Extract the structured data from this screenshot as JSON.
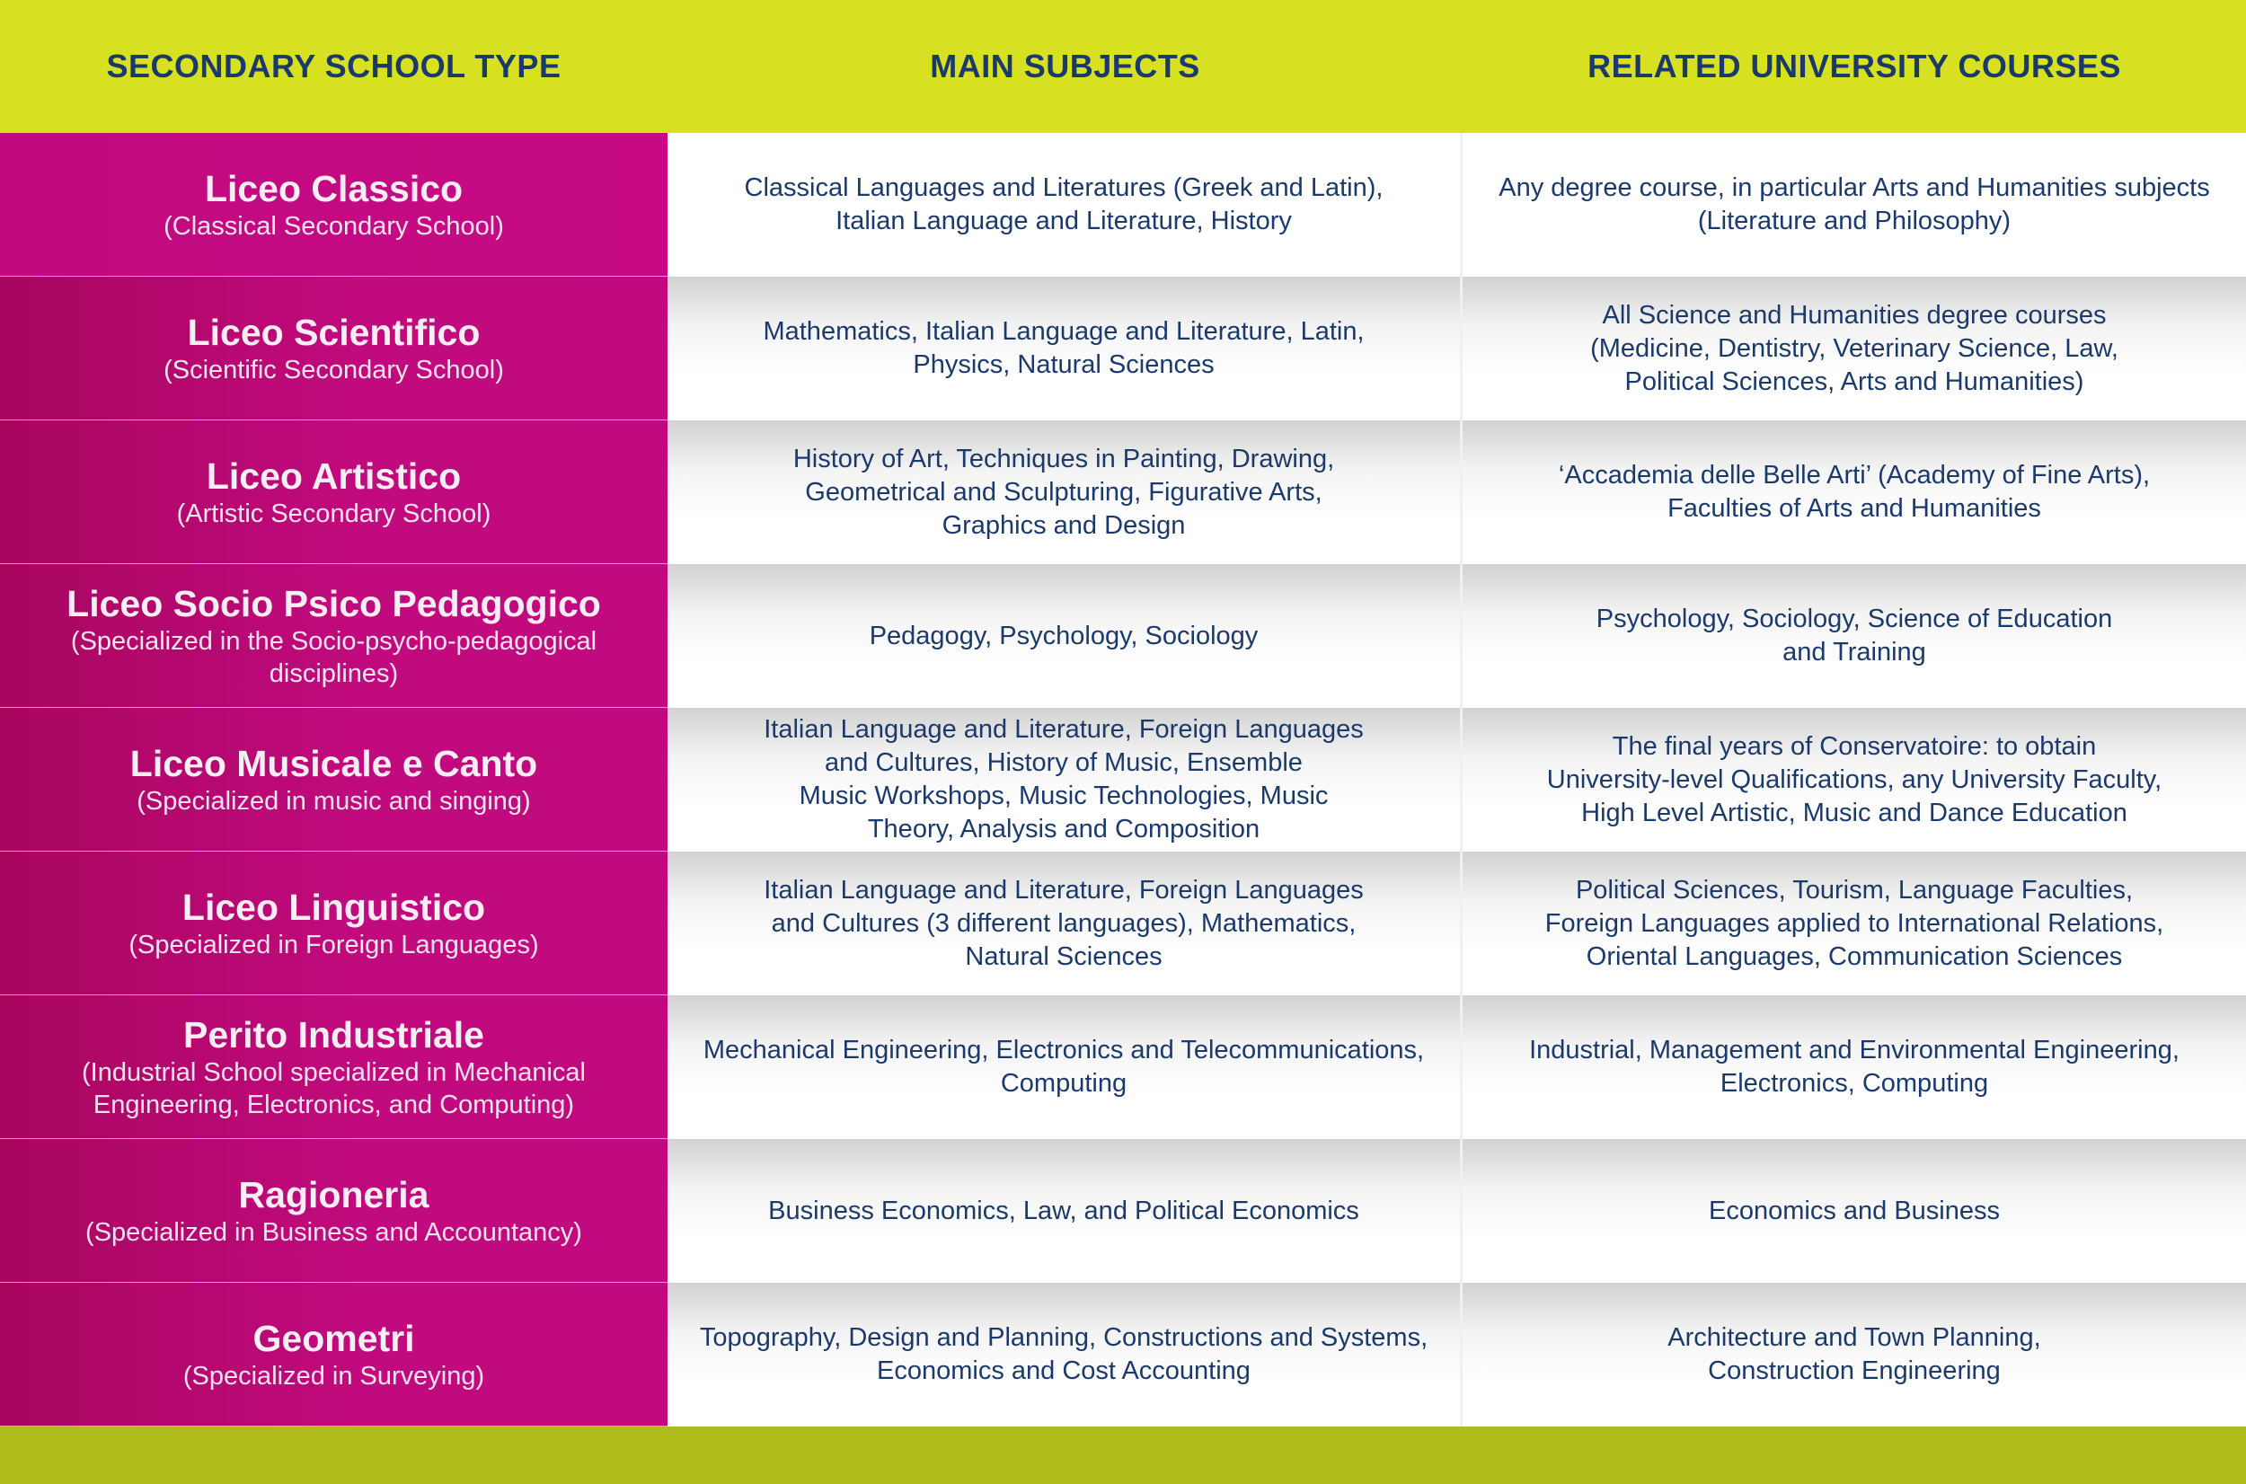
{
  "header": {
    "col1": "SECONDARY SCHOOL TYPE",
    "col2": "MAIN SUBJECTS",
    "col3": "RELATED UNIVERSITY COURSES"
  },
  "colors": {
    "header_bg": "#d7e021",
    "header_text": "#1b3a6b",
    "school_bg": "#c10a7e",
    "body_text": "#1b3a6b",
    "footer_bg": "#b0bb1c"
  },
  "rows": [
    {
      "name": "Liceo Classico",
      "sub": "(Classical Secondary School)",
      "subjects": "Classical Languages and Literatures (Greek and Latin),\nItalian Language and Literature, History",
      "courses": "Any degree course, in particular Arts and Humanities subjects\n(Literature and Philosophy)"
    },
    {
      "name": "Liceo Scientifico",
      "sub": "(Scientific Secondary School)",
      "subjects": "Mathematics, Italian Language and Literature, Latin,\nPhysics, Natural Sciences",
      "courses": "All Science and Humanities degree courses\n(Medicine, Dentistry, Veterinary Science, Law,\nPolitical Sciences, Arts and Humanities)"
    },
    {
      "name": "Liceo Artistico",
      "sub": "(Artistic Secondary School)",
      "subjects": "History of Art, Techniques in Painting, Drawing,\nGeometrical and Sculpturing, Figurative Arts,\nGraphics and Design",
      "courses": "‘Accademia delle Belle Arti’ (Academy of Fine Arts),\nFaculties of Arts and Humanities"
    },
    {
      "name": "Liceo Socio Psico Pedagogico",
      "sub": "(Specialized in the Socio-psycho-pedagogical disciplines)",
      "subjects": "Pedagogy, Psychology, Sociology",
      "courses": "Psychology, Sociology,  Science of Education\nand Training"
    },
    {
      "name": "Liceo Musicale e Canto",
      "sub": "(Specialized in music and singing)",
      "subjects": "Italian Language and Literature, Foreign Languages\nand Cultures, History of Music, Ensemble\nMusic Workshops, Music Technologies, Music\nTheory, Analysis and Composition",
      "courses": "The final years of Conservatoire: to obtain\nUniversity-level Qualifications, any University Faculty,\nHigh Level Artistic, Music and Dance Education"
    },
    {
      "name": "Liceo Linguistico",
      "sub": "(Specialized in Foreign Languages)",
      "subjects": "Italian Language and Literature, Foreign Languages\nand Cultures (3 different languages), Mathematics,\nNatural Sciences",
      "courses": "Political Sciences, Tourism, Language Faculties,\nForeign Languages applied to International Relations,\nOriental Languages, Communication Sciences"
    },
    {
      "name": "Perito Industriale",
      "sub": "(Industrial School specialized in Mechanical\nEngineering, Electronics, and Computing)",
      "subjects": "Mechanical Engineering, Electronics and Telecommunications,\nComputing",
      "courses": "Industrial, Management and Environmental Engineering,\nElectronics, Computing"
    },
    {
      "name": "Ragioneria",
      "sub": "(Specialized in Business and Accountancy)",
      "subjects": "Business Economics, Law, and Political Economics",
      "courses": "Economics and Business"
    },
    {
      "name": "Geometri",
      "sub": "(Specialized in Surveying)",
      "subjects": "Topography, Design and Planning, Constructions and Systems,\nEconomics and Cost Accounting",
      "courses": "Architecture and Town Planning,\nConstruction Engineering"
    }
  ]
}
